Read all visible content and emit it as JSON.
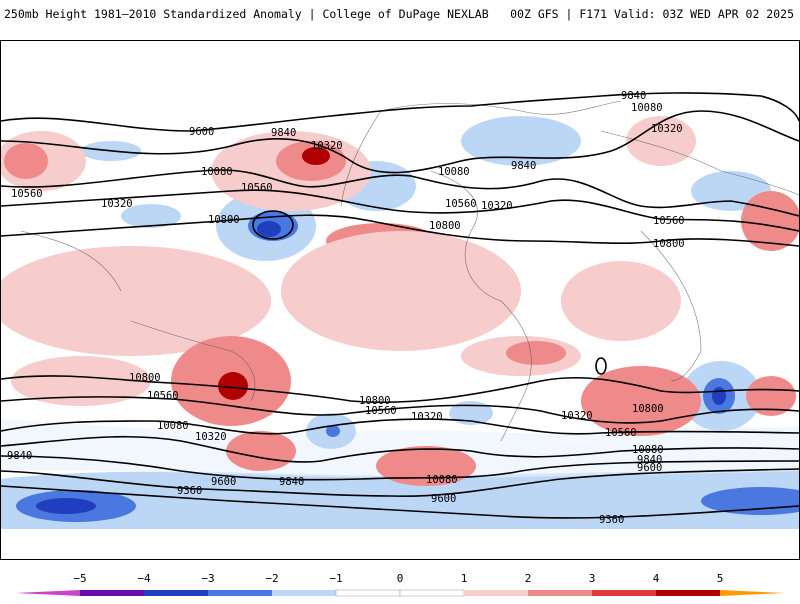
{
  "header": {
    "left_title": "250mb Height 1981–2010 Standardized Anomaly | College of DuPage NEXLAB",
    "right_title": "00Z GFS | F171 Valid: 03Z WED APR 02 2025"
  },
  "colors": {
    "neg5": "#cc44cc",
    "neg4": "#6a0dad",
    "neg3": "#1f3fbf",
    "neg2": "#4a78e0",
    "neg1": "#bcd7f5",
    "zero": "#ffffff",
    "pos1": "#f6cccc",
    "pos2": "#ee8a8a",
    "pos3": "#dd3b3b",
    "pos4": "#b00000",
    "pos5": "#ff9900"
  },
  "colorbar": {
    "ticks": [
      "−5",
      "−4",
      "−3",
      "−2",
      "−1",
      "0",
      "1",
      "2",
      "3",
      "4",
      "5"
    ]
  },
  "contour_labels": [
    "9840",
    "10080",
    "10320",
    "9600",
    "9840",
    "10320",
    "10080",
    "10560",
    "10560",
    "10320",
    "10800",
    "9840",
    "10080",
    "10560",
    "10320",
    "10800",
    "10560",
    "10800",
    "10800",
    "10560",
    "10080",
    "10320",
    "10800",
    "10560",
    "10320",
    "10320",
    "10800",
    "10560",
    "10080",
    "9840",
    "9600",
    "9840",
    "9840",
    "9600",
    "10080",
    "9600",
    "9360",
    "9360"
  ]
}
